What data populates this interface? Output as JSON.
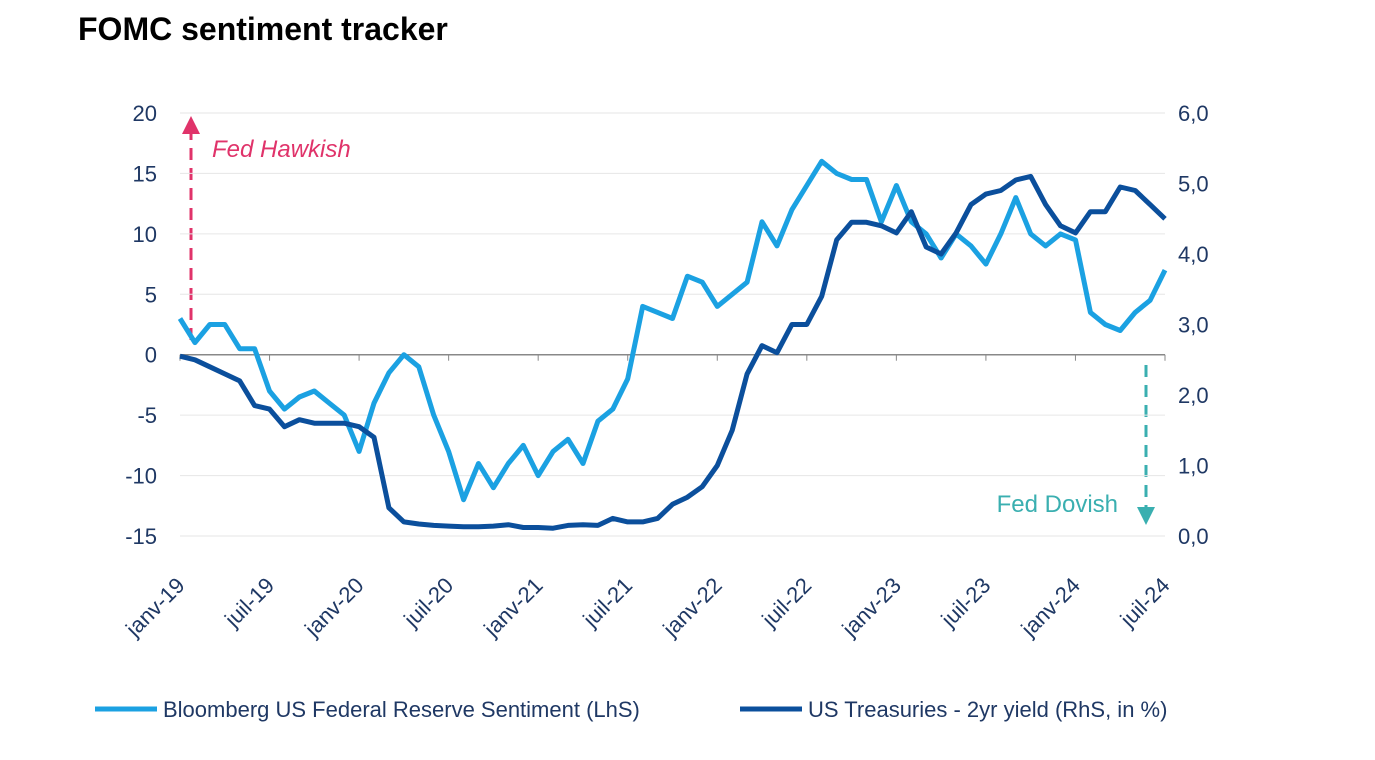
{
  "chart_data": {
    "type": "line",
    "title": "FOMC sentiment tracker",
    "categories": [
      "janv-19",
      null,
      null,
      null,
      null,
      null,
      "juil-19",
      null,
      null,
      null,
      null,
      null,
      "janv-20",
      null,
      null,
      null,
      null,
      null,
      "juil-20",
      null,
      null,
      null,
      null,
      null,
      "janv-21",
      null,
      null,
      null,
      null,
      null,
      "juil-21",
      null,
      null,
      null,
      null,
      null,
      "janv-22",
      null,
      null,
      null,
      null,
      null,
      "juil-22",
      null,
      null,
      null,
      null,
      null,
      "janv-23",
      null,
      null,
      null,
      null,
      null,
      "juil-23",
      null,
      null,
      null,
      null,
      null,
      "janv-24",
      null,
      null,
      null,
      null,
      null,
      "juil-24"
    ],
    "series": [
      {
        "name": "Bloomberg US Federal Reserve Sentiment (LhS)",
        "color": "#1ba1e2",
        "values": [
          3,
          1,
          2.5,
          2.5,
          0.5,
          0.5,
          -3,
          -4.5,
          -3.5,
          -3,
          -4,
          -5,
          -8,
          -4,
          -1.5,
          0,
          -1,
          -5,
          -8,
          -12,
          -9,
          -11,
          -9,
          -7.5,
          -10,
          -8,
          -7,
          -9,
          -5.5,
          -4.5,
          -2,
          4,
          3.5,
          3,
          6.5,
          6,
          4,
          5,
          6,
          11,
          9,
          12,
          14,
          16,
          15,
          14.5,
          14.5,
          11,
          14,
          11,
          10,
          8,
          10,
          9,
          7.5,
          10,
          13,
          10,
          9,
          10,
          9.5,
          3.5,
          2.5,
          2,
          3.5,
          4.5,
          7
        ]
      },
      {
        "name": "US Treasuries - 2yr yield (RhS, in %)",
        "color": "#0b4f9c",
        "axis": "y2",
        "values": [
          2.55,
          2.5,
          2.4,
          2.3,
          2.2,
          1.85,
          1.8,
          1.55,
          1.65,
          1.6,
          1.6,
          1.6,
          1.55,
          1.4,
          0.4,
          0.2,
          0.17,
          0.15,
          0.14,
          0.13,
          0.13,
          0.14,
          0.16,
          0.12,
          0.12,
          0.11,
          0.15,
          0.16,
          0.15,
          0.25,
          0.2,
          0.2,
          0.25,
          0.45,
          0.55,
          0.7,
          1.0,
          1.5,
          2.3,
          2.7,
          2.6,
          3.0,
          3.0,
          3.4,
          4.2,
          4.45,
          4.45,
          4.4,
          4.3,
          4.6,
          4.1,
          4.0,
          4.3,
          4.7,
          4.85,
          4.9,
          5.05,
          5.1,
          4.7,
          4.4,
          4.3,
          4.6,
          4.6,
          4.95,
          4.9,
          4.7,
          4.5
        ]
      }
    ],
    "ylim": [
      -15,
      20
    ],
    "yticks": [
      -15,
      -10,
      -5,
      0,
      5,
      10,
      15,
      20
    ],
    "y2lim": [
      0,
      6
    ],
    "y2ticks": [
      {
        "value": 0,
        "label": "0,0"
      },
      {
        "value": 1,
        "label": "1,0"
      },
      {
        "value": 2,
        "label": "2,0"
      },
      {
        "value": 3,
        "label": "3,0"
      },
      {
        "value": 4,
        "label": "4,0"
      },
      {
        "value": 5,
        "label": "5,0"
      },
      {
        "value": 6,
        "label": "6,0"
      }
    ],
    "grid": true,
    "legend": "bottom",
    "annotations": [
      "Fed Hawkish",
      "Fed Dovish"
    ]
  }
}
